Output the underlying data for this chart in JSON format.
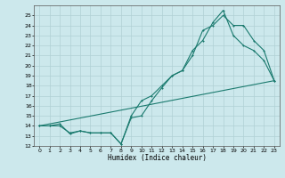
{
  "xlabel": "Humidex (Indice chaleur)",
  "bg_color": "#cce8ec",
  "grid_color": "#b0d0d4",
  "line_color": "#1a7a6e",
  "xlim": [
    -0.5,
    23.5
  ],
  "ylim": [
    12,
    26
  ],
  "xticks": [
    0,
    1,
    2,
    3,
    4,
    5,
    6,
    7,
    8,
    9,
    10,
    11,
    12,
    13,
    14,
    15,
    16,
    17,
    18,
    19,
    20,
    21,
    22,
    23
  ],
  "yticks": [
    12,
    13,
    14,
    15,
    16,
    17,
    18,
    19,
    20,
    21,
    22,
    23,
    24,
    25
  ],
  "line1_x": [
    0,
    1,
    2,
    3,
    4,
    5,
    6,
    7,
    8,
    9,
    10,
    11,
    12,
    13,
    14,
    15,
    16,
    17,
    18,
    19,
    20,
    21,
    22,
    23
  ],
  "line1_y": [
    14,
    14,
    14,
    13.3,
    13.5,
    13.3,
    13.3,
    13.3,
    12.2,
    14.8,
    15.0,
    16.5,
    17.8,
    19.0,
    19.5,
    21.5,
    22.5,
    24.3,
    25.5,
    23.0,
    22.0,
    21.5,
    20.5,
    18.5
  ],
  "line2_x": [
    0,
    1,
    2,
    3,
    4,
    5,
    6,
    7,
    8,
    9,
    10,
    11,
    12,
    13,
    14,
    15,
    16,
    17,
    18,
    19,
    20,
    21,
    22,
    23
  ],
  "line2_y": [
    14,
    14,
    14.2,
    13.2,
    13.5,
    13.3,
    13.3,
    13.3,
    12.2,
    15.0,
    16.5,
    17.0,
    18.0,
    19.0,
    19.5,
    21.0,
    23.5,
    24.0,
    25.0,
    24.0,
    24.0,
    22.5,
    21.5,
    18.5
  ],
  "line3_x": [
    0,
    23
  ],
  "line3_y": [
    14,
    18.5
  ]
}
